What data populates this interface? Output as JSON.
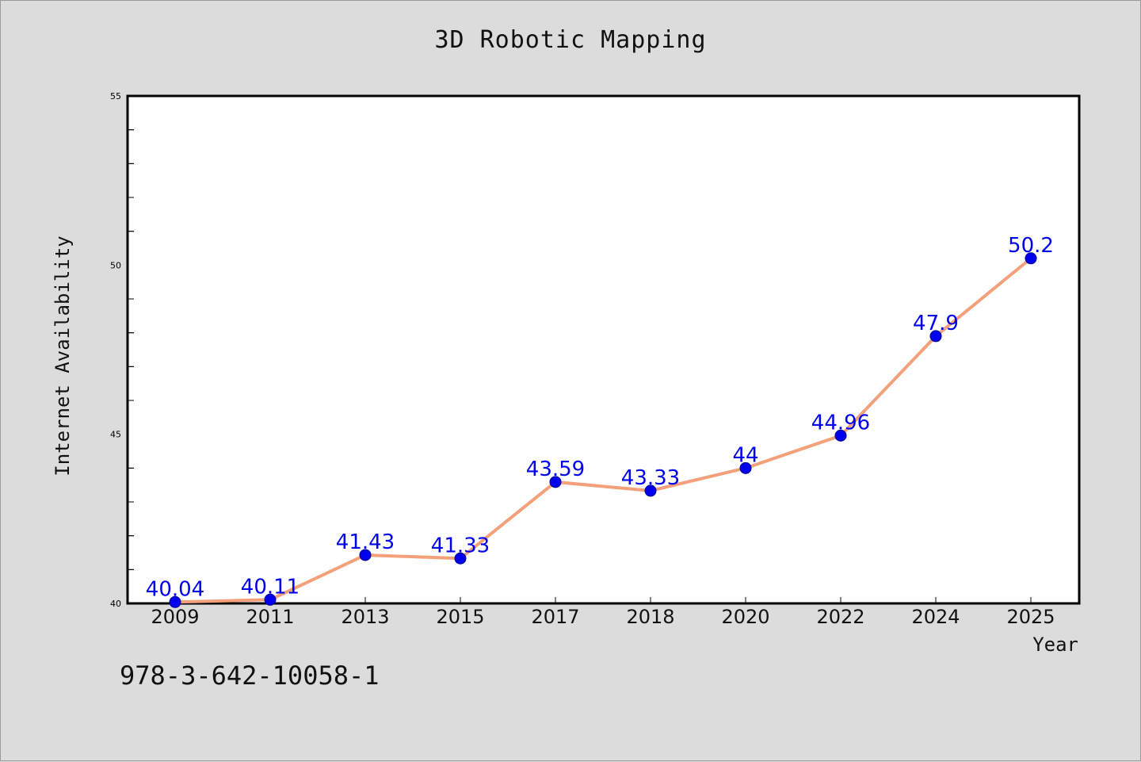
{
  "chart_data": {
    "type": "line",
    "title": "3D Robotic Mapping",
    "xlabel": "Year",
    "ylabel": "Internet Availability",
    "categories": [
      "2009",
      "2011",
      "2013",
      "2015",
      "2017",
      "2018",
      "2020",
      "2022",
      "2024",
      "2025"
    ],
    "series": [
      {
        "values": [
          40.04,
          40.11,
          41.43,
          41.33,
          43.59,
          43.33,
          44,
          44.96,
          47.9,
          50.2
        ],
        "labels": [
          "40.04",
          "40.11",
          "41.43",
          "41.33",
          "43.59",
          "43.33",
          "44",
          "44.96",
          "47.9",
          "50.2"
        ],
        "line_color": "#f4a07a",
        "marker_color": "#0000ee",
        "label_color": "#0000ee"
      }
    ],
    "ylim": [
      40,
      55
    ],
    "yticks": [
      "40",
      "45",
      "50",
      "55"
    ],
    "grid": false,
    "legend": "none"
  },
  "footer": {
    "code": "978-3-642-10058-1"
  },
  "colors": {
    "background": "#dcdcdc",
    "plot_background": "#ffffff",
    "axis": "#000000"
  }
}
